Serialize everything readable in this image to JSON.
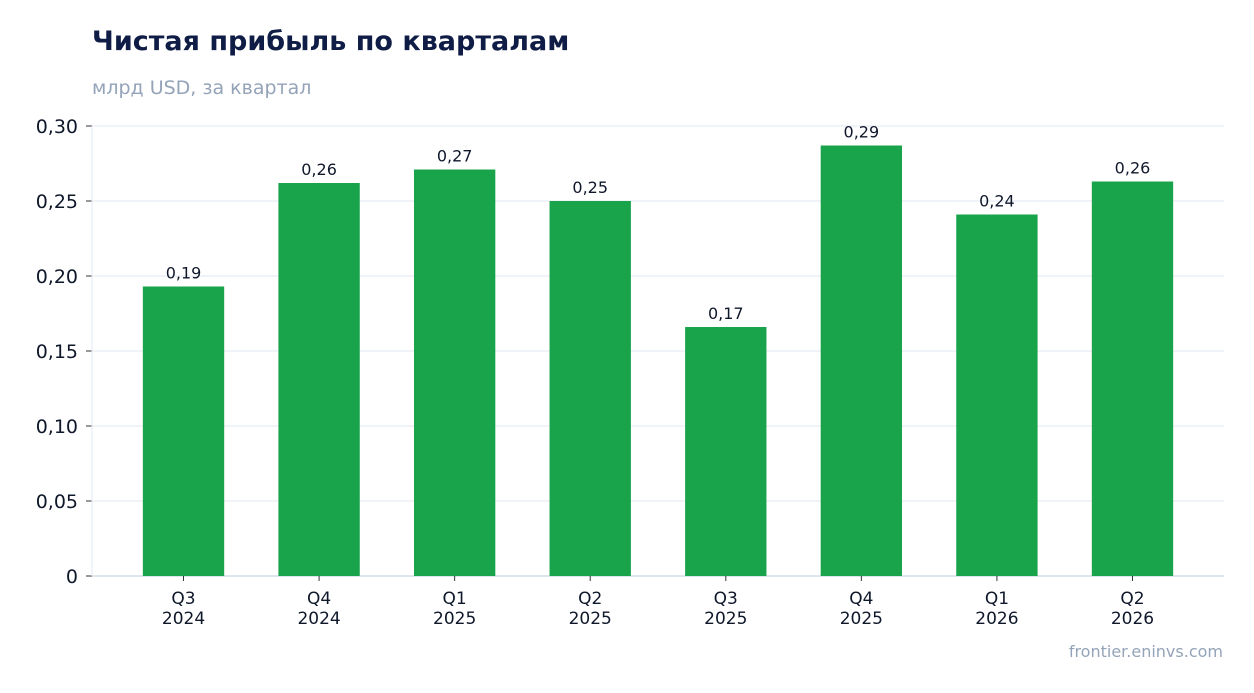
{
  "chart_data": {
    "type": "bar",
    "title": "Чистая прибыль по кварталам",
    "subtitle": "млрд USD, за квартал",
    "source": "frontier.eninvs.com",
    "categories": [
      [
        "Q3",
        "2024"
      ],
      [
        "Q4",
        "2024"
      ],
      [
        "Q1",
        "2025"
      ],
      [
        "Q2",
        "2025"
      ],
      [
        "Q3",
        "2025"
      ],
      [
        "Q4",
        "2025"
      ],
      [
        "Q1",
        "2026"
      ],
      [
        "Q2",
        "2026"
      ]
    ],
    "values": [
      0.193,
      0.262,
      0.271,
      0.25,
      0.166,
      0.287,
      0.241,
      0.263
    ],
    "data_labels": [
      "0,19",
      "0,26",
      "0,27",
      "0,25",
      "0,17",
      "0,29",
      "0,24",
      "0,26"
    ],
    "ylim": [
      0,
      0.3
    ],
    "yticks": [
      0,
      0.05,
      0.1,
      0.15,
      0.2,
      0.25,
      0.3
    ],
    "ytick_labels": [
      "0",
      "0,05",
      "0,10",
      "0,15",
      "0,20",
      "0,25",
      "0,30"
    ],
    "grid": true,
    "colors": {
      "bar": "#19a34a",
      "title": "#0f1c45",
      "muted": "#94a3b8",
      "grid": "#e2e8f0",
      "axis": "#cbd5e1",
      "text": "#0f172a"
    }
  }
}
